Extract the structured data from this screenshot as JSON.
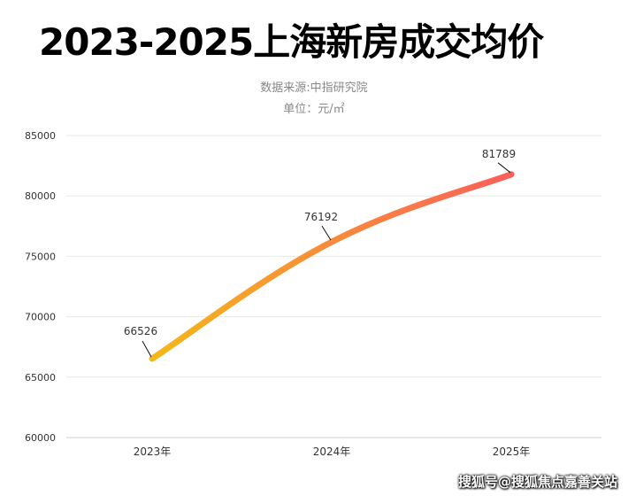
{
  "chart_data": {
    "type": "line",
    "title": "2023-2025上海新房成交均价",
    "subtitle": "数据来源:中指研究院",
    "unit_label": "单位：元/㎡",
    "categories": [
      "2023年",
      "2024年",
      "2025年"
    ],
    "series": [
      {
        "name": "成交均价",
        "values": [
          66526,
          76192,
          81789
        ]
      }
    ],
    "data_labels": [
      "66526",
      "76192",
      "81789"
    ],
    "y_ticks": [
      60000,
      65000,
      70000,
      75000,
      80000,
      85000
    ],
    "ylim": [
      60000,
      85000
    ],
    "xlabel": "",
    "ylabel": "",
    "grid": true,
    "colors": {
      "start": "#f5b71a",
      "end": "#fb5f5a",
      "grid": "#e8e8e8",
      "axis": "#cccccc"
    }
  },
  "watermark": "搜狐号@搜狐焦点嘉善关站"
}
